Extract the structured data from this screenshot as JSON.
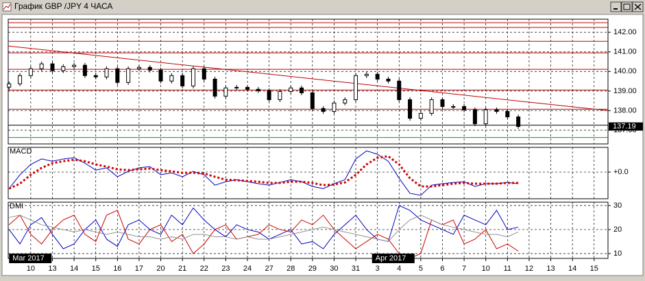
{
  "chart_data": [
    {
      "type": "candlestick",
      "title": "График GBP /JPY  4 ЧАСА",
      "x": [
        -1,
        -0.5,
        0,
        0.5,
        1,
        1.5,
        2,
        2.5,
        3,
        3.5,
        4,
        4.5,
        5,
        5.5,
        6,
        6.5,
        7,
        7.5,
        8,
        8.5,
        9,
        9.5,
        10,
        10.5,
        11,
        11.5,
        12,
        12.5,
        13,
        13.5,
        14,
        14.5,
        15,
        15.5,
        16,
        16.5,
        17,
        17.5,
        18,
        18.5,
        19,
        19.5,
        20,
        20.5,
        21,
        21.5,
        22,
        22.5
      ],
      "open": [
        139.2,
        139.37,
        139.79,
        140.14,
        140.39,
        140.04,
        140.25,
        140.32,
        139.79,
        139.72,
        140.14,
        139.44,
        140.14,
        140.21,
        140.07,
        139.51,
        139.79,
        139.26,
        140.14,
        139.61,
        138.74,
        139.16,
        139.19,
        139.09,
        139.02,
        138.56,
        138.98,
        139.16,
        138.91,
        138.11,
        137.96,
        138.39,
        138.56,
        139.79,
        139.86,
        139.61,
        139.51,
        138.56,
        137.61,
        137.86,
        138.56,
        138.21,
        138.21,
        138.04,
        137.33,
        138.04,
        137.96,
        137.68
      ],
      "high": [
        139.49,
        139.91,
        140.26,
        140.51,
        140.51,
        140.37,
        140.44,
        140.44,
        139.91,
        140.26,
        140.26,
        140.26,
        140.33,
        140.33,
        140.19,
        139.91,
        139.91,
        140.26,
        140.26,
        139.73,
        139.28,
        139.31,
        139.31,
        139.21,
        139.14,
        139.1,
        139.28,
        139.28,
        139.03,
        138.23,
        138.51,
        138.68,
        139.91,
        139.98,
        139.98,
        139.73,
        139.63,
        138.68,
        137.98,
        138.68,
        138.68,
        138.33,
        138.33,
        138.16,
        138.16,
        138.16,
        138.08,
        137.8
      ],
      "low": [
        139.08,
        139.25,
        139.67,
        140.02,
        139.92,
        139.92,
        140.13,
        139.67,
        139.6,
        139.6,
        139.32,
        139.32,
        140.02,
        139.95,
        139.39,
        139.39,
        139.14,
        139.14,
        139.49,
        138.62,
        138.62,
        139.04,
        138.97,
        138.9,
        138.44,
        138.44,
        138.86,
        138.79,
        137.99,
        137.84,
        137.84,
        138.27,
        138.44,
        139.67,
        139.49,
        139.39,
        138.44,
        137.49,
        137.49,
        137.74,
        138.09,
        138.09,
        137.92,
        137.21,
        137.21,
        137.84,
        137.56,
        137.07
      ],
      "close": [
        139.37,
        139.79,
        140.14,
        140.39,
        140.04,
        140.25,
        140.32,
        139.79,
        139.72,
        140.14,
        139.44,
        140.14,
        140.21,
        140.07,
        139.51,
        139.79,
        139.26,
        140.14,
        139.61,
        138.74,
        139.16,
        139.19,
        139.09,
        139.02,
        138.56,
        138.98,
        139.16,
        138.91,
        138.11,
        137.96,
        138.39,
        138.56,
        139.79,
        139.86,
        139.61,
        139.51,
        138.56,
        137.61,
        137.86,
        138.56,
        138.21,
        138.21,
        138.04,
        137.33,
        138.04,
        137.96,
        137.68,
        137.19
      ],
      "xlim": [
        -1.04,
        26.64
      ],
      "ylim": [
        136.3,
        142.67
      ],
      "yticks": [
        {
          "value": 142,
          "label": "142.00"
        },
        {
          "value": 141,
          "label": "141.00"
        },
        {
          "value": 140,
          "label": "140.00"
        },
        {
          "value": 139,
          "label": "139.00"
        },
        {
          "value": 138,
          "label": "138.00"
        },
        {
          "value": 137,
          "label": "137.00"
        }
      ],
      "levels": [
        {
          "value": 142.49,
          "color": "#c00000"
        },
        {
          "value": 142.25,
          "color": "#c00000"
        },
        {
          "value": 141.54,
          "color": "#c00000"
        },
        {
          "value": 140.95,
          "color": "#c00000"
        },
        {
          "value": 140.11,
          "color": "#c00000"
        },
        {
          "value": 139.05,
          "color": "#c00000"
        },
        {
          "value": 138.07,
          "color": "#c00000"
        },
        {
          "value": 137.26,
          "color": "#000000"
        },
        {
          "value": 136.63,
          "color": "#00a000"
        }
      ],
      "trendline": {
        "x": [
          -1.04,
          26.64
        ],
        "values": [
          141.3,
          138.0
        ],
        "color": "#c00000"
      },
      "grid": true
    },
    {
      "type": "line",
      "title": "MACD",
      "x": [
        -1,
        -0.5,
        0,
        0.5,
        1,
        1.5,
        2,
        2.5,
        3,
        3.5,
        4,
        4.5,
        5,
        5.5,
        6,
        6.5,
        7,
        7.5,
        8,
        8.5,
        9,
        9.5,
        10,
        10.5,
        11,
        11.5,
        12,
        12.5,
        13,
        13.5,
        14,
        14.5,
        15,
        15.5,
        16,
        16.5,
        17,
        17.5,
        18,
        18.5,
        19,
        19.5,
        20,
        20.5,
        21,
        21.5,
        22,
        22.5
      ],
      "series": [
        {
          "color": "#0000c0",
          "style": "solid",
          "values": [
            -0.67,
            -0.11,
            0.31,
            0.53,
            0.44,
            0.53,
            0.58,
            0.36,
            0.08,
            0.17,
            -0.19,
            0.03,
            0.17,
            0.22,
            -0.11,
            -0.03,
            -0.19,
            0.03,
            -0.11,
            -0.53,
            -0.39,
            -0.31,
            -0.39,
            -0.47,
            -0.53,
            -0.42,
            -0.31,
            -0.39,
            -0.58,
            -0.67,
            -0.47,
            -0.31,
            0.53,
            0.86,
            0.72,
            0.44,
            -0.25,
            -0.86,
            -0.94,
            -0.53,
            -0.47,
            -0.42,
            -0.39,
            -0.58,
            -0.47,
            -0.47,
            -0.42,
            -0.47
          ]
        },
        {
          "color": "#d00000",
          "style": "dotted",
          "values": [
            -0.67,
            -0.47,
            -0.11,
            0.17,
            0.36,
            0.44,
            0.5,
            0.44,
            0.31,
            0.22,
            0.11,
            0.08,
            0.11,
            0.14,
            0.08,
            0.03,
            -0.03,
            -0.03,
            -0.06,
            -0.19,
            -0.31,
            -0.33,
            -0.36,
            -0.39,
            -0.44,
            -0.44,
            -0.39,
            -0.39,
            -0.44,
            -0.53,
            -0.5,
            -0.42,
            -0.11,
            0.31,
            0.58,
            0.64,
            0.31,
            -0.25,
            -0.58,
            -0.58,
            -0.53,
            -0.47,
            -0.44,
            -0.47,
            -0.47,
            -0.47,
            -0.44,
            -0.44
          ]
        }
      ],
      "xlim": [
        -1.04,
        26.64
      ],
      "ylim": [
        -1.08,
        1.0
      ],
      "yticks": [
        {
          "value": 0,
          "label": "+0.0"
        }
      ],
      "grid": true
    },
    {
      "type": "line",
      "title": "DMI",
      "x": [
        -1,
        -0.5,
        0,
        0.5,
        1,
        1.5,
        2,
        2.5,
        3,
        3.5,
        4,
        4.5,
        5,
        5.5,
        6,
        6.5,
        7,
        7.5,
        8,
        8.5,
        9,
        9.5,
        10,
        10.5,
        11,
        11.5,
        12,
        12.5,
        13,
        13.5,
        14,
        14.5,
        15,
        15.5,
        16,
        16.5,
        17,
        17.5,
        18,
        18.5,
        19,
        19.5,
        20,
        20.5,
        21,
        21.5,
        22,
        22.5
      ],
      "series": [
        {
          "color": "#0000c0",
          "style": "solid",
          "values": [
            20,
            14,
            22,
            25,
            18,
            12,
            14,
            20,
            24,
            16,
            13,
            22,
            24,
            20,
            18,
            26,
            22,
            29,
            24,
            20,
            17,
            22,
            20,
            19,
            16,
            18,
            20,
            14,
            15,
            12,
            18,
            22,
            26,
            20,
            16,
            15,
            30,
            28,
            24,
            22,
            20,
            18,
            26,
            24,
            22,
            28,
            20,
            21
          ]
        },
        {
          "color": "#d00000",
          "style": "solid",
          "values": [
            22,
            26,
            18,
            14,
            20,
            24,
            26,
            18,
            15,
            26,
            28,
            16,
            14,
            20,
            22,
            15,
            18,
            10,
            14,
            20,
            22,
            16,
            17,
            18,
            22,
            20,
            19,
            24,
            22,
            26,
            20,
            16,
            12,
            15,
            18,
            16,
            10,
            8,
            10,
            24,
            22,
            24,
            14,
            16,
            20,
            12,
            14,
            11
          ]
        },
        {
          "color": "#909090",
          "style": "solid",
          "values": [
            25,
            26,
            24,
            22,
            21,
            20,
            19,
            20,
            19,
            18,
            19,
            18,
            17,
            17,
            16,
            17,
            16,
            18,
            18,
            17,
            17,
            16,
            17,
            16,
            16,
            17,
            18,
            19,
            20,
            21,
            20,
            19,
            18,
            17,
            16,
            15,
            20,
            24,
            26,
            24,
            22,
            21,
            20,
            19,
            18,
            18,
            17,
            19
          ]
        }
      ],
      "xlim": [
        -1.04,
        26.64
      ],
      "ylim": [
        8,
        31.4
      ],
      "yticks": [
        30,
        20,
        10
      ],
      "xticks": [
        {
          "value": 0,
          "label": "10"
        },
        {
          "value": 1,
          "label": "13"
        },
        {
          "value": 2,
          "label": "14"
        },
        {
          "value": 3,
          "label": "15"
        },
        {
          "value": 4,
          "label": "16"
        },
        {
          "value": 5,
          "label": "17"
        },
        {
          "value": 6,
          "label": "20"
        },
        {
          "value": 7,
          "label": "21"
        },
        {
          "value": 8,
          "label": "22"
        },
        {
          "value": 9,
          "label": "23"
        },
        {
          "value": 10,
          "label": "24"
        },
        {
          "value": 11,
          "label": "27"
        },
        {
          "value": 12,
          "label": "28"
        },
        {
          "value": 13,
          "label": "29"
        },
        {
          "value": 14,
          "label": "30"
        },
        {
          "value": 15,
          "label": "31"
        },
        {
          "value": 16,
          "label": "3"
        },
        {
          "value": 17,
          "label": "4"
        },
        {
          "value": 18,
          "label": "5"
        },
        {
          "value": 19,
          "label": "6"
        },
        {
          "value": 20,
          "label": "7"
        },
        {
          "value": 21,
          "label": "10"
        },
        {
          "value": 22,
          "label": "11"
        },
        {
          "value": 23,
          "label": "12"
        },
        {
          "value": 24,
          "label": "13"
        },
        {
          "value": 25,
          "label": "14"
        },
        {
          "value": 26,
          "label": "15"
        }
      ],
      "months": [
        {
          "value": -1,
          "label": "Mar 2017"
        },
        {
          "value": 15.75,
          "label": "Apr 2017"
        }
      ],
      "grid": true
    }
  ]
}
